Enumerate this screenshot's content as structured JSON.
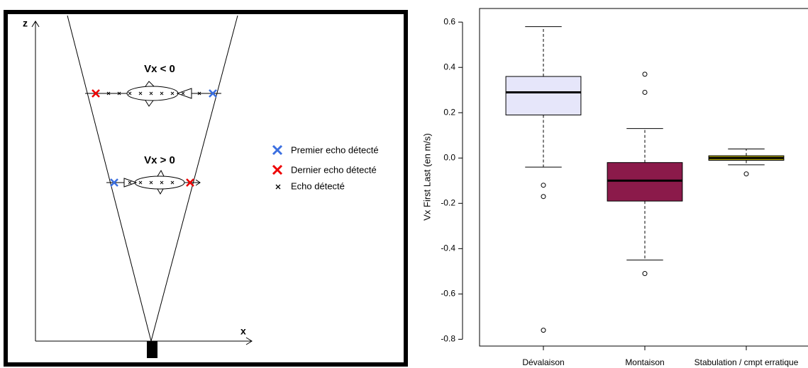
{
  "diagram": {
    "z_label": "z",
    "x_label": "x",
    "fish_top_label": "Vx < 0",
    "fish_bottom_label": "Vx > 0",
    "legend": [
      "Premier echo détecté",
      "Dernier echo détecté",
      "Echo détecté"
    ]
  },
  "chart_data": {
    "type": "box",
    "ylabel": "Vx First Last (en m/s)",
    "categories": [
      "Dévalaison",
      "Montaison",
      "Stabulation / cmpt erratique"
    ],
    "boxes": [
      {
        "color": "#e6e6fa",
        "whislo": -0.04,
        "q1": 0.19,
        "med": 0.29,
        "q3": 0.36,
        "whishi": 0.58,
        "fliers": [
          -0.12,
          -0.17,
          -0.76
        ]
      },
      {
        "color": "#8b1a4a",
        "whislo": -0.45,
        "q1": -0.19,
        "med": -0.1,
        "q3": -0.02,
        "whishi": 0.13,
        "fliers": [
          0.37,
          0.29,
          -0.51
        ]
      },
      {
        "color": "#b8b000",
        "whislo": -0.03,
        "q1": -0.01,
        "med": 0,
        "q3": 0.01,
        "whishi": 0.04,
        "fliers": [
          -0.07
        ]
      }
    ],
    "ylim": [
      -0.83,
      0.66
    ],
    "yticks": [
      -0.8,
      -0.6,
      -0.4,
      -0.2,
      {
        "value": 0,
        "label": "0.0"
      },
      0.2,
      0.4,
      0.6
    ]
  }
}
